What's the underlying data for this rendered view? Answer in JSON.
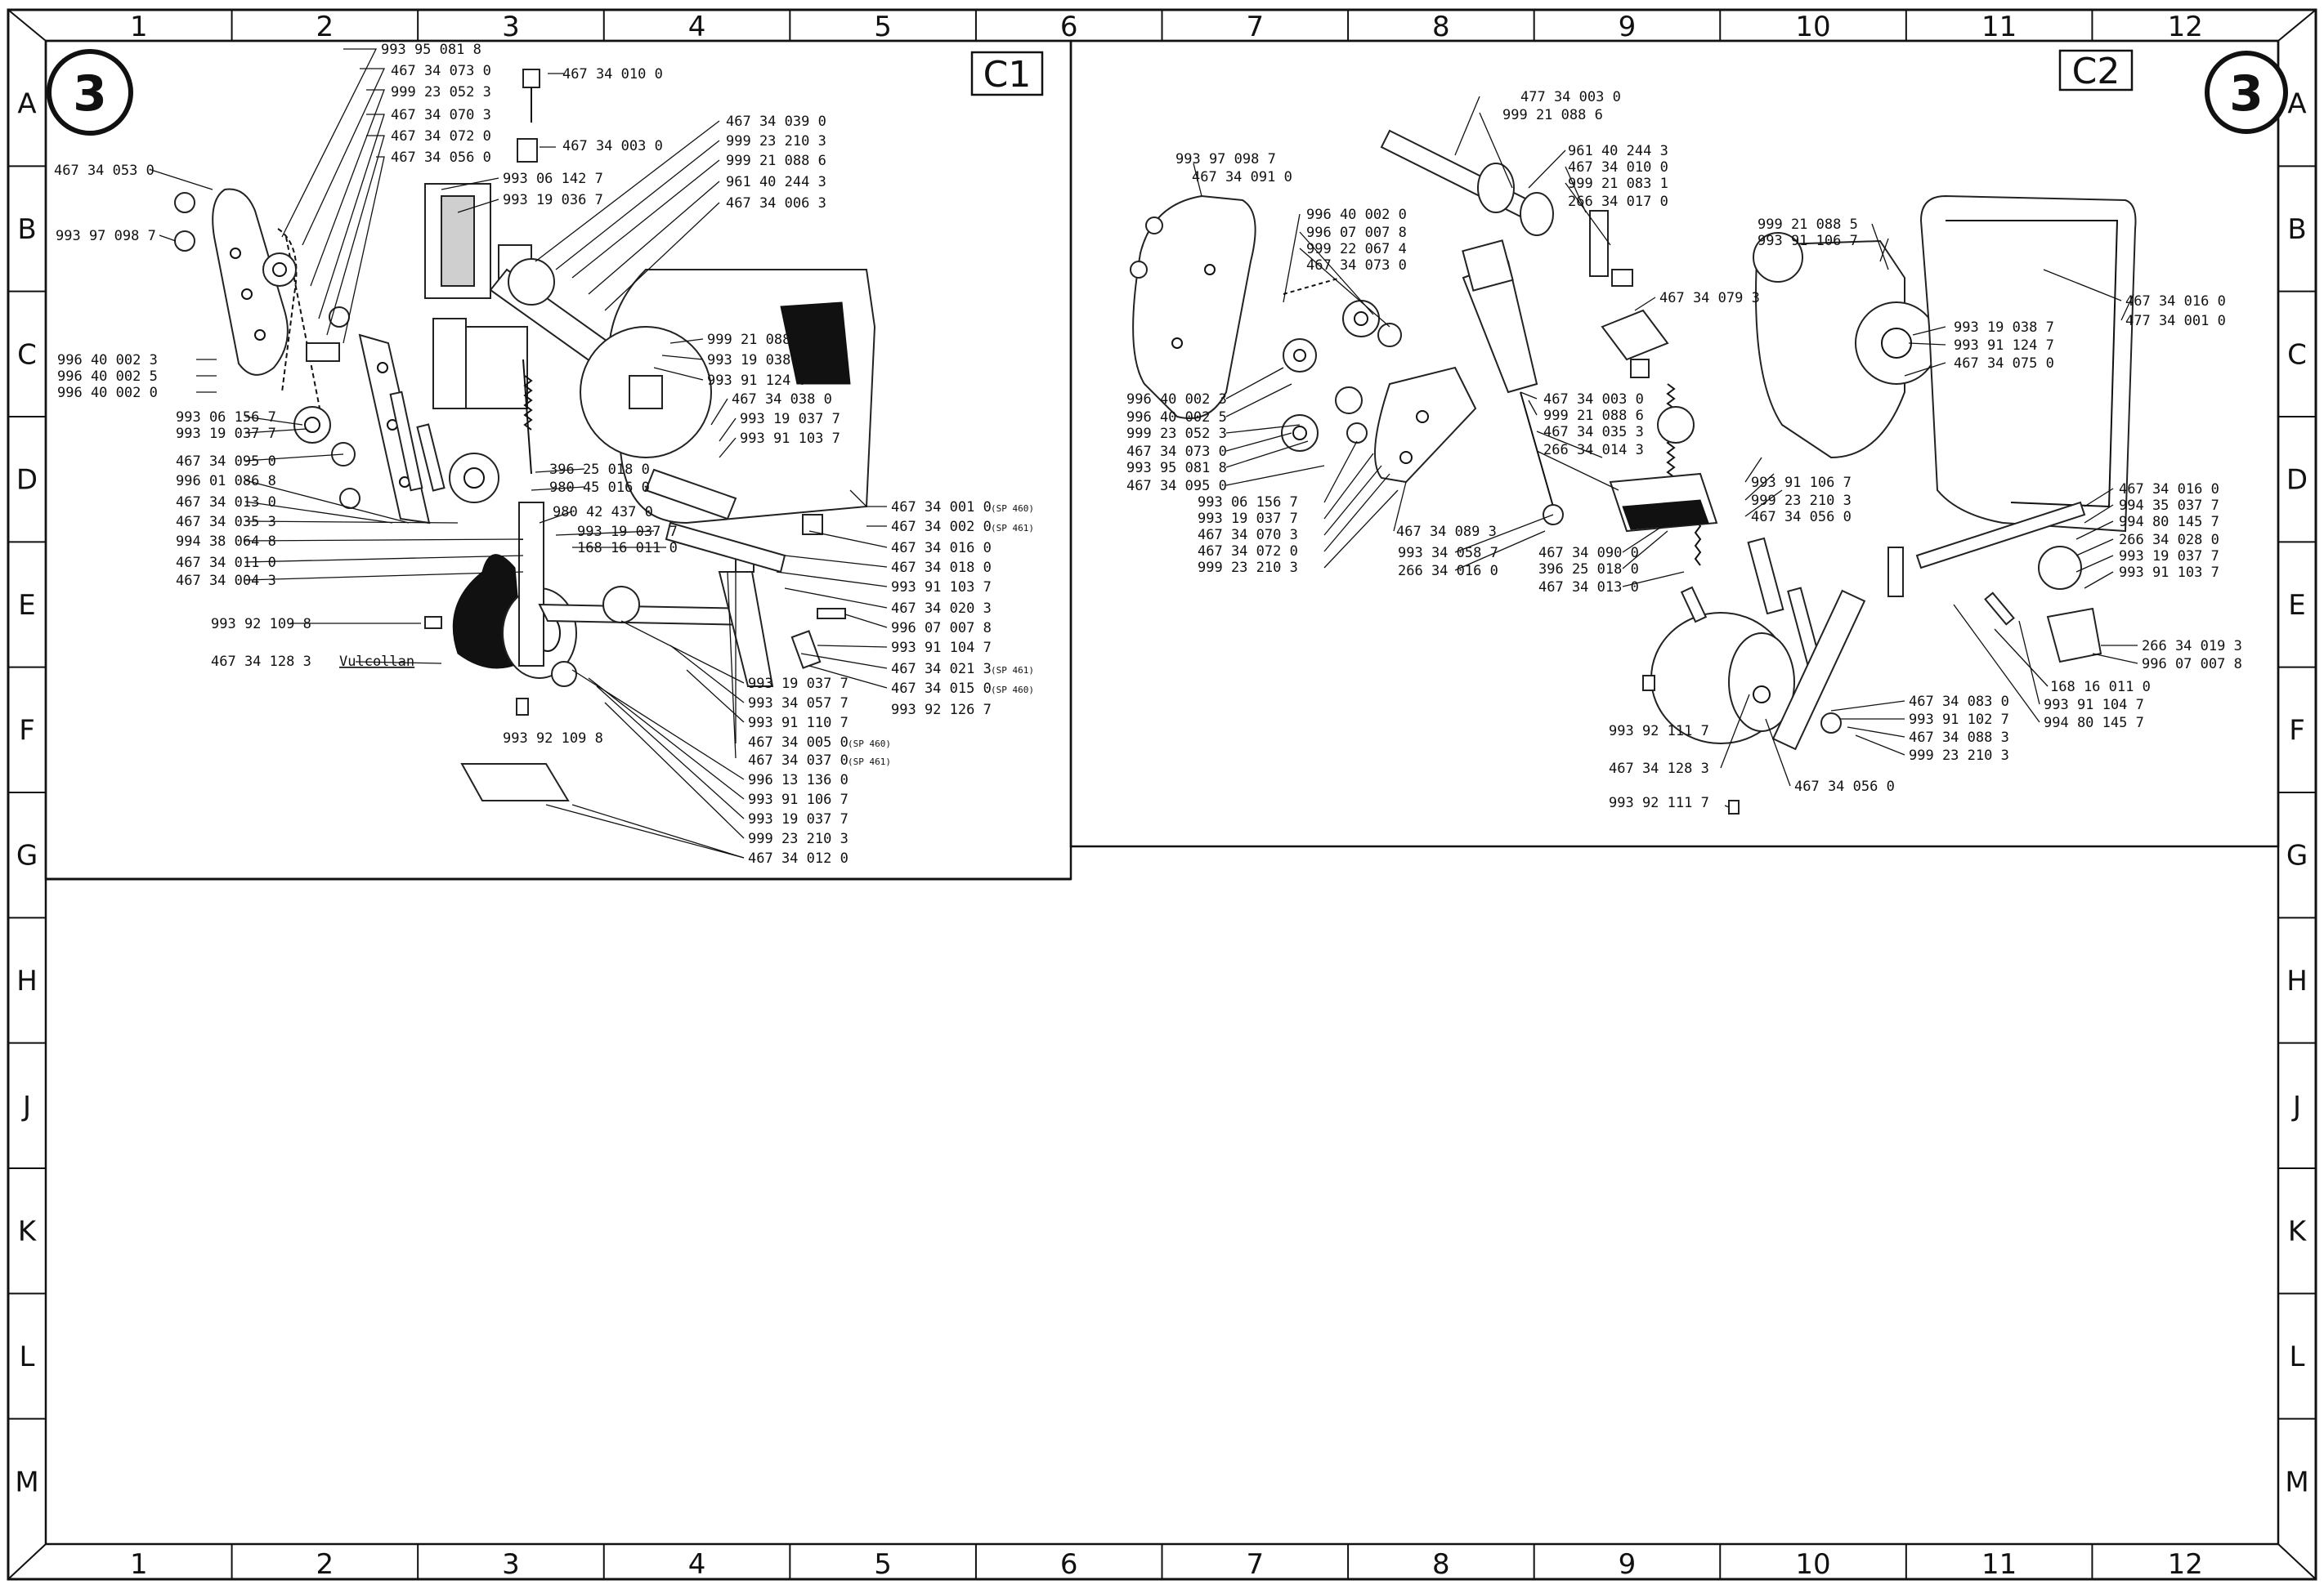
{
  "grid": {
    "columns": [
      "1",
      "2",
      "3",
      "4",
      "5",
      "6",
      "7",
      "8",
      "9",
      "10",
      "11",
      "12"
    ],
    "rows": [
      "A",
      "B",
      "C",
      "D",
      "E",
      "F",
      "G",
      "H",
      "J",
      "K",
      "L",
      "M"
    ]
  },
  "sheet_number": "3",
  "panels": [
    {
      "id": "C1",
      "label": "C1",
      "callouts": [
        {
          "text": "993 95 081 8"
        },
        {
          "text": "467 34 073 0"
        },
        {
          "text": "999 23 052 3"
        },
        {
          "text": "467 34 070 3"
        },
        {
          "text": "467 34 072 0"
        },
        {
          "text": "467 34 056 0"
        },
        {
          "text": "467 34 010 0"
        },
        {
          "text": "467 34 003 0"
        },
        {
          "text": "993 06 142 7"
        },
        {
          "text": "993 19 036 7"
        },
        {
          "text": "467 34 039 0"
        },
        {
          "text": "999 23 210 3"
        },
        {
          "text": "999 21 088 6"
        },
        {
          "text": "961 40 244 3"
        },
        {
          "text": "467 34 006 3"
        },
        {
          "text": "467 34 053 0"
        },
        {
          "text": "993 97 098 7"
        },
        {
          "text": "996 40 002 3"
        },
        {
          "text": "996 40 002 5"
        },
        {
          "text": "996 40 002 0"
        },
        {
          "text": "993 06 156 7"
        },
        {
          "text": "993 19 037 7"
        },
        {
          "text": "467 34 095 0"
        },
        {
          "text": "996 01 086 8"
        },
        {
          "text": "467 34 013 0"
        },
        {
          "text": "467 34 035 3"
        },
        {
          "text": "994 38 064 8"
        },
        {
          "text": "467 34 011 0"
        },
        {
          "text": "467 34 004 3"
        },
        {
          "text": "993 92 109 8"
        },
        {
          "text": "467 34 128 3",
          "note": "Vulcollan"
        },
        {
          "text": "999 21 088 5"
        },
        {
          "text": "993 19 038 7"
        },
        {
          "text": "993 91 124 7"
        },
        {
          "text": "467 34 038 0"
        },
        {
          "text": "993 19 037 7"
        },
        {
          "text": "993 91 103 7"
        },
        {
          "text": "396 25 018 0"
        },
        {
          "text": "980 45 016 0"
        },
        {
          "text": "980 42 437 0"
        },
        {
          "text": "993 19 037 7"
        },
        {
          "text": "168 16 011 0"
        },
        {
          "text": "467 34 001 0",
          "note": "(SP 460)"
        },
        {
          "text": "467 34 002 0",
          "note": "(SP 461)"
        },
        {
          "text": "467 34 016 0"
        },
        {
          "text": "467 34 018 0"
        },
        {
          "text": "993 91 103 7"
        },
        {
          "text": "467 34 020 3"
        },
        {
          "text": "996 07 007 8"
        },
        {
          "text": "993 91 104 7"
        },
        {
          "text": "467 34 021 3",
          "note": "(SP 461)"
        },
        {
          "text": "467 34 015 0",
          "note": "(SP 460)"
        },
        {
          "text": "993 92 126 7"
        },
        {
          "text": "993 19 037 7"
        },
        {
          "text": "993 34 057 7"
        },
        {
          "text": "993 91 110 7"
        },
        {
          "text": "467 34 005 0",
          "note": "(SP 460)"
        },
        {
          "text": "467 34 037 0",
          "note": "(SP 461)"
        },
        {
          "text": "996 13 136 0"
        },
        {
          "text": "993 91 106 7"
        },
        {
          "text": "993 19 037 7"
        },
        {
          "text": "999 23 210 3"
        },
        {
          "text": "467 34 012 0"
        },
        {
          "text": "993 92 109 8"
        }
      ]
    },
    {
      "id": "C2",
      "label": "C2",
      "callouts": [
        {
          "text": "477 34 003 0"
        },
        {
          "text": "999 21 088 6"
        },
        {
          "text": "961 40 244 3"
        },
        {
          "text": "467 34 010 0"
        },
        {
          "text": "999 21 083 1"
        },
        {
          "text": "266 34 017 0"
        },
        {
          "text": "993 97 098 7"
        },
        {
          "text": "467 34 091 0"
        },
        {
          "text": "996 40 002 0"
        },
        {
          "text": "996 07 007 8"
        },
        {
          "text": "999 22 067 4"
        },
        {
          "text": "467 34 073 0"
        },
        {
          "text": "467 34 079 3"
        },
        {
          "text": "999 21 088 5"
        },
        {
          "text": "993 91 106 7"
        },
        {
          "text": "467 34 016 0"
        },
        {
          "text": "477 34 001 0"
        },
        {
          "text": "993 19 038 7"
        },
        {
          "text": "993 91 124 7"
        },
        {
          "text": "467 34 075 0"
        },
        {
          "text": "996 40 002 3"
        },
        {
          "text": "996 40 002 5"
        },
        {
          "text": "999 23 052 3"
        },
        {
          "text": "467 34 073 0"
        },
        {
          "text": "993 95 081 8"
        },
        {
          "text": "467 34 095 0"
        },
        {
          "text": "467 34 003 0"
        },
        {
          "text": "999 21 088 6"
        },
        {
          "text": "467 34 035 3"
        },
        {
          "text": "266 34 014 3"
        },
        {
          "text": "993 06 156 7"
        },
        {
          "text": "993 19 037 7"
        },
        {
          "text": "467 34 070 3"
        },
        {
          "text": "467 34 072 0"
        },
        {
          "text": "999 23 210 3"
        },
        {
          "text": "467 34 089 3"
        },
        {
          "text": "993 34 058 7"
        },
        {
          "text": "266 34 016 0"
        },
        {
          "text": "467 34 090 0"
        },
        {
          "text": "396 25 018 0"
        },
        {
          "text": "467 34 013 0"
        },
        {
          "text": "993 91 106 7"
        },
        {
          "text": "999 23 210 3"
        },
        {
          "text": "467 34 056 0"
        },
        {
          "text": "467 34 016 0"
        },
        {
          "text": "994 35 037 7"
        },
        {
          "text": "994 80 145 7"
        },
        {
          "text": "266 34 028 0"
        },
        {
          "text": "993 19 037 7"
        },
        {
          "text": "993 91 103 7"
        },
        {
          "text": "266 34 019 3"
        },
        {
          "text": "996 07 007 8"
        },
        {
          "text": "168 16 011 0"
        },
        {
          "text": "993 91 104 7"
        },
        {
          "text": "994 80 145 7"
        },
        {
          "text": "467 34 083 0"
        },
        {
          "text": "993 91 102 7"
        },
        {
          "text": "467 34 088 3"
        },
        {
          "text": "999 23 210 3"
        },
        {
          "text": "993 92 111 7"
        },
        {
          "text": "467 34 128 3"
        },
        {
          "text": "467 34 056 0"
        },
        {
          "text": "993 92 111 7"
        }
      ]
    }
  ]
}
